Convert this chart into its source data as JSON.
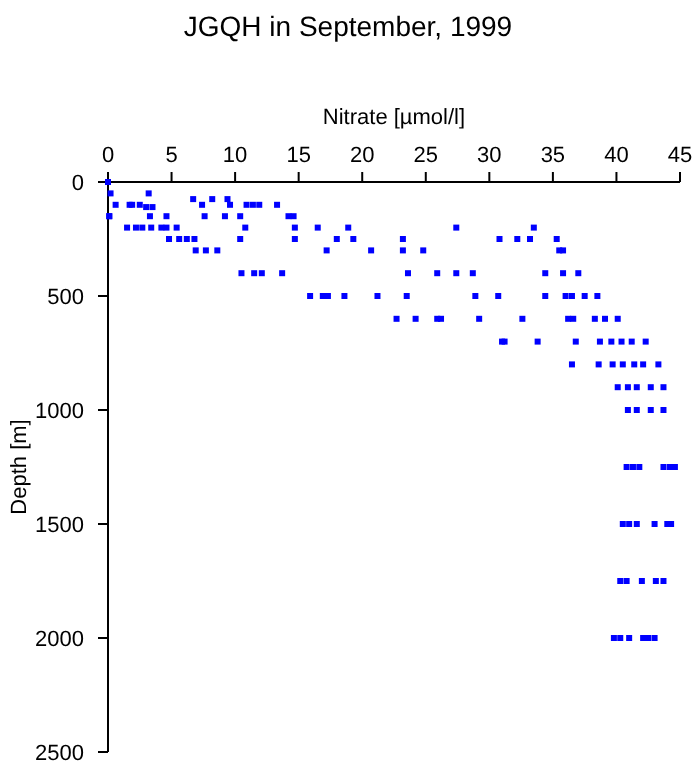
{
  "chart_data": {
    "type": "scatter",
    "title": "JGQH in September, 1999",
    "xlabel": "Nitrate [µmol/l]",
    "ylabel": "Depth [m]",
    "xlim": [
      0,
      45
    ],
    "xticks": [
      0,
      5,
      10,
      15,
      20,
      25,
      30,
      35,
      40,
      45
    ],
    "ylim": [
      2500,
      0
    ],
    "yticks": [
      0,
      500,
      1000,
      1500,
      2000,
      2500
    ],
    "grid": false,
    "marker": "square",
    "series": [
      {
        "color": "#0000ff",
        "x": [
          0,
          0.2,
          0.1,
          3.2,
          6.7,
          8.2,
          9.4,
          0.6,
          1.7,
          1.9,
          2.5,
          3.0,
          3.5,
          7.4,
          9.6,
          10.9,
          11.4,
          11.9,
          13.3,
          0.1,
          3.3,
          4.6,
          7.6,
          9.2,
          10.4,
          14.2,
          14.6,
          1.5,
          2.2,
          2.7,
          3.4,
          4.2,
          4.6,
          5.4,
          10.8,
          14.7,
          16.5,
          18.9,
          27.4,
          33.5,
          4.8,
          5.6,
          6.2,
          6.8,
          10.4,
          14.7,
          18,
          19.3,
          23.2,
          30.8,
          32.2,
          33.2,
          35.3,
          6.9,
          7.7,
          8.6,
          17.2,
          20.7,
          23.2,
          24.8,
          35.5,
          35.8,
          10.5,
          11.5,
          12.1,
          13.7,
          23.6,
          25.9,
          27.4,
          28.7,
          34.4,
          35.8,
          37,
          15.9,
          16.9,
          17.3,
          18.6,
          21.2,
          23.5,
          28.9,
          30.7,
          34.4,
          36,
          36.5,
          37.5,
          38.5,
          22.7,
          24.2,
          25.9,
          26.2,
          29.2,
          32.6,
          36.2,
          36.6,
          38.3,
          39.1,
          40.1,
          31,
          31.2,
          33.8,
          36.8,
          38.7,
          39.6,
          40.4,
          41.2,
          42.3,
          36.5,
          38.6,
          39.7,
          40.5,
          41.4,
          42.1,
          43.3,
          40.1,
          40.9,
          41.6,
          42.7,
          43.7,
          40.9,
          41.6,
          42.7,
          43.7,
          40.8,
          41.3,
          41.8,
          43.7,
          44.2,
          44.6,
          40.5,
          41,
          41.6,
          43,
          44,
          44.3,
          40.3,
          40.8,
          42,
          43.1,
          43.7,
          39.8,
          40.3,
          41,
          42.1,
          42.5,
          43
        ],
        "values": [
          0,
          50,
          150,
          50,
          75,
          75,
          75,
          100,
          100,
          100,
          100,
          110,
          110,
          100,
          100,
          100,
          100,
          100,
          100,
          150,
          150,
          150,
          150,
          150,
          150,
          150,
          150,
          200,
          200,
          200,
          200,
          200,
          200,
          200,
          200,
          200,
          200,
          200,
          200,
          200,
          250,
          250,
          250,
          250,
          250,
          250,
          250,
          250,
          250,
          250,
          250,
          250,
          250,
          300,
          300,
          300,
          300,
          300,
          300,
          300,
          300,
          300,
          400,
          400,
          400,
          400,
          400,
          400,
          400,
          400,
          400,
          400,
          400,
          500,
          500,
          500,
          500,
          500,
          500,
          500,
          500,
          500,
          500,
          500,
          500,
          500,
          600,
          600,
          600,
          600,
          600,
          600,
          600,
          600,
          600,
          600,
          600,
          700,
          700,
          700,
          700,
          700,
          700,
          700,
          700,
          700,
          800,
          800,
          800,
          800,
          800,
          800,
          800,
          900,
          900,
          900,
          900,
          900,
          1000,
          1000,
          1000,
          1000,
          1250,
          1250,
          1250,
          1250,
          1250,
          1250,
          1500,
          1500,
          1500,
          1500,
          1500,
          1500,
          1750,
          1750,
          1750,
          1750,
          1750,
          2000,
          2000,
          2000,
          2000,
          2000,
          2000
        ]
      }
    ]
  }
}
